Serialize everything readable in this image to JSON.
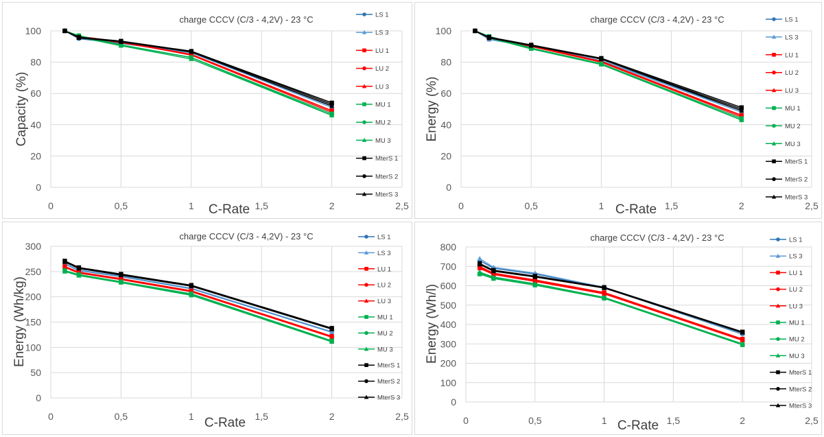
{
  "chart_data": [
    {
      "type": "line",
      "title": "charge CCCV (C/3 - 4,2V) - 23 °C",
      "xlabel": "C-Rate",
      "ylabel": "Capacity (%)",
      "xlim": [
        0,
        2.5
      ],
      "ylim": [
        0,
        100
      ],
      "x_ticks": [
        "0",
        "0,5",
        "1",
        "1,5",
        "2",
        "2,5"
      ],
      "y_ticks": [
        "0",
        "20",
        "40",
        "60",
        "80",
        "100"
      ],
      "grid": true,
      "legend_position": "right",
      "x": [
        0.1,
        0.2,
        0.5,
        1,
        2
      ],
      "series": [
        {
          "name": "LS 1",
          "color": "#2e75b6",
          "marker": "circle",
          "values": [
            100,
            95,
            92,
            86,
            52
          ]
        },
        {
          "name": "LS 3",
          "color": "#5b9bd5",
          "marker": "triangle",
          "values": [
            100,
            95.5,
            92.5,
            86,
            51
          ]
        },
        {
          "name": "LU 1",
          "color": "#ff0000",
          "marker": "square",
          "values": [
            100,
            96,
            93,
            85,
            49
          ]
        },
        {
          "name": "LU 2",
          "color": "#ff0000",
          "marker": "circle",
          "values": [
            100,
            96,
            92.5,
            85,
            49
          ]
        },
        {
          "name": "LU 3",
          "color": "#ff0000",
          "marker": "triangle",
          "values": [
            100,
            96.5,
            93,
            84.5,
            48
          ]
        },
        {
          "name": "MU 1",
          "color": "#00b050",
          "marker": "square",
          "values": [
            100,
            97,
            91,
            83,
            47
          ]
        },
        {
          "name": "MU 2",
          "color": "#00b050",
          "marker": "circle",
          "values": [
            100,
            96.5,
            91,
            83,
            46
          ]
        },
        {
          "name": "MU 3",
          "color": "#00b050",
          "marker": "triangle",
          "values": [
            100,
            96,
            90.5,
            82,
            46
          ]
        },
        {
          "name": "MterS 1",
          "color": "#000000",
          "marker": "square",
          "values": [
            100,
            96,
            93.5,
            87,
            54
          ]
        },
        {
          "name": "MterS 2",
          "color": "#000000",
          "marker": "circle",
          "values": [
            100,
            96,
            93,
            87,
            53
          ]
        },
        {
          "name": "MterS 3",
          "color": "#000000",
          "marker": "triangle",
          "values": [
            100,
            95.5,
            93,
            86.5,
            52
          ]
        }
      ]
    },
    {
      "type": "line",
      "title": "charge CCCV (C/3 - 4,2V) - 23 °C",
      "xlabel": "C-Rate",
      "ylabel": "Energy (%)",
      "xlim": [
        0,
        2.5
      ],
      "ylim": [
        0,
        100
      ],
      "x_ticks": [
        "0",
        "0,5",
        "1",
        "1,5",
        "2",
        "2,5"
      ],
      "y_ticks": [
        "0",
        "20",
        "40",
        "60",
        "80",
        "100"
      ],
      "grid": true,
      "legend_position": "right",
      "x": [
        0.1,
        0.2,
        0.5,
        1,
        2
      ],
      "series": [
        {
          "name": "LS 1",
          "color": "#2e75b6",
          "marker": "circle",
          "values": [
            100,
            94.5,
            90,
            81,
            49
          ]
        },
        {
          "name": "LS 3",
          "color": "#5b9bd5",
          "marker": "triangle",
          "values": [
            100,
            94.5,
            90.5,
            81,
            48
          ]
        },
        {
          "name": "LU 1",
          "color": "#ff0000",
          "marker": "square",
          "values": [
            100,
            95.5,
            90.5,
            80.5,
            46
          ]
        },
        {
          "name": "LU 2",
          "color": "#ff0000",
          "marker": "circle",
          "values": [
            100,
            95.5,
            90,
            80,
            46
          ]
        },
        {
          "name": "LU 3",
          "color": "#ff0000",
          "marker": "triangle",
          "values": [
            100,
            96,
            90.5,
            80,
            45
          ]
        },
        {
          "name": "MU 1",
          "color": "#00b050",
          "marker": "square",
          "values": [
            100,
            96.5,
            89,
            79,
            44
          ]
        },
        {
          "name": "MU 2",
          "color": "#00b050",
          "marker": "circle",
          "values": [
            100,
            96,
            89,
            79,
            43
          ]
        },
        {
          "name": "MU 3",
          "color": "#00b050",
          "marker": "triangle",
          "values": [
            100,
            95.5,
            88.5,
            78.5,
            43
          ]
        },
        {
          "name": "MterS 1",
          "color": "#000000",
          "marker": "square",
          "values": [
            100,
            96,
            91,
            82.5,
            51
          ]
        },
        {
          "name": "MterS 2",
          "color": "#000000",
          "marker": "circle",
          "values": [
            100,
            95.5,
            91,
            82,
            50
          ]
        },
        {
          "name": "MterS 3",
          "color": "#000000",
          "marker": "triangle",
          "values": [
            100,
            95.5,
            90.5,
            82,
            49
          ]
        }
      ]
    },
    {
      "type": "line",
      "title": "charge CCCV (C/3 - 4,2V) - 23 °C",
      "xlabel": "C-Rate",
      "ylabel": "Energy (Wh/kg)",
      "xlim": [
        0,
        2.5
      ],
      "ylim": [
        0,
        300
      ],
      "x_ticks": [
        "0",
        "0,5",
        "1",
        "1,5",
        "2",
        "2,5"
      ],
      "y_ticks": [
        "0",
        "50",
        "100",
        "150",
        "200",
        "250",
        "300"
      ],
      "grid": true,
      "legend_position": "right",
      "x": [
        0.1,
        0.2,
        0.5,
        1,
        2
      ],
      "series": [
        {
          "name": "LS 1",
          "color": "#2e75b6",
          "marker": "circle",
          "values": [
            265,
            252,
            240,
            216,
            130
          ]
        },
        {
          "name": "LS 3",
          "color": "#5b9bd5",
          "marker": "triangle",
          "values": [
            266,
            253,
            241,
            217,
            131
          ]
        },
        {
          "name": "LU 1",
          "color": "#ff0000",
          "marker": "square",
          "values": [
            260,
            249,
            236,
            212,
            122
          ]
        },
        {
          "name": "LU 2",
          "color": "#ff0000",
          "marker": "circle",
          "values": [
            259,
            248,
            235,
            211,
            121
          ]
        },
        {
          "name": "LU 3",
          "color": "#ff0000",
          "marker": "triangle",
          "values": [
            258,
            247,
            234,
            210,
            120
          ]
        },
        {
          "name": "MU 1",
          "color": "#00b050",
          "marker": "square",
          "values": [
            252,
            244,
            230,
            206,
            113
          ]
        },
        {
          "name": "MU 2",
          "color": "#00b050",
          "marker": "circle",
          "values": [
            251,
            243,
            229,
            205,
            112
          ]
        },
        {
          "name": "MU 3",
          "color": "#00b050",
          "marker": "triangle",
          "values": [
            250,
            242,
            228,
            203,
            111
          ]
        },
        {
          "name": "MterS 1",
          "color": "#000000",
          "marker": "square",
          "values": [
            271,
            258,
            245,
            223,
            138
          ]
        },
        {
          "name": "MterS 2",
          "color": "#000000",
          "marker": "circle",
          "values": [
            270,
            257,
            244,
            222,
            137
          ]
        },
        {
          "name": "MterS 3",
          "color": "#000000",
          "marker": "triangle",
          "values": [
            269,
            256,
            243,
            221,
            136
          ]
        }
      ]
    },
    {
      "type": "line",
      "title": "charge CCCV (C/3 - 4,2V) - 23 °C",
      "xlabel": "C-Rate",
      "ylabel": "Energy (Wh/l)",
      "xlim": [
        0,
        2.5
      ],
      "ylim": [
        0,
        800
      ],
      "x_ticks": [
        "0",
        "0,5",
        "1",
        "1,5",
        "2",
        "2,5"
      ],
      "y_ticks": [
        "0",
        "100",
        "200",
        "300",
        "400",
        "500",
        "600",
        "700",
        "800"
      ],
      "grid": true,
      "legend_position": "right",
      "x": [
        0.1,
        0.2,
        0.5,
        1,
        2
      ],
      "series": [
        {
          "name": "LS 1",
          "color": "#2e75b6",
          "marker": "circle",
          "values": [
            730,
            690,
            660,
            590,
            350
          ]
        },
        {
          "name": "LS 3",
          "color": "#5b9bd5",
          "marker": "triangle",
          "values": [
            740,
            695,
            665,
            592,
            352
          ]
        },
        {
          "name": "LU 1",
          "color": "#ff0000",
          "marker": "square",
          "values": [
            700,
            665,
            630,
            565,
            325
          ]
        },
        {
          "name": "LU 2",
          "color": "#ff0000",
          "marker": "circle",
          "values": [
            695,
            660,
            625,
            560,
            320
          ]
        },
        {
          "name": "LU 3",
          "color": "#ff0000",
          "marker": "triangle",
          "values": [
            690,
            658,
            622,
            558,
            318
          ]
        },
        {
          "name": "MU 1",
          "color": "#00b050",
          "marker": "square",
          "values": [
            660,
            637,
            603,
            535,
            295
          ]
        },
        {
          "name": "MU 2",
          "color": "#00b050",
          "marker": "circle",
          "values": [
            665,
            640,
            605,
            538,
            298
          ]
        },
        {
          "name": "MU 3",
          "color": "#00b050",
          "marker": "triangle",
          "values": [
            670,
            645,
            610,
            540,
            300
          ]
        },
        {
          "name": "MterS 1",
          "color": "#000000",
          "marker": "square",
          "values": [
            715,
            680,
            650,
            592,
            362
          ]
        },
        {
          "name": "MterS 2",
          "color": "#000000",
          "marker": "circle",
          "values": [
            712,
            678,
            648,
            590,
            360
          ]
        },
        {
          "name": "MterS 3",
          "color": "#000000",
          "marker": "triangle",
          "values": [
            710,
            675,
            645,
            588,
            358
          ]
        }
      ]
    }
  ]
}
